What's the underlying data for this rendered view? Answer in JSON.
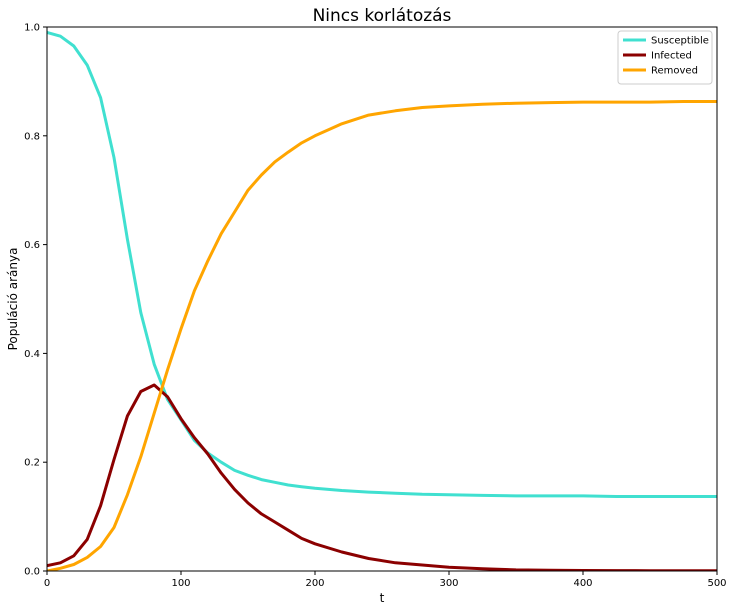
{
  "chart_data": {
    "type": "line",
    "title": "Nincs korlátozás",
    "xlabel": "t",
    "ylabel": "Populáció aránya",
    "xlim": [
      0,
      500
    ],
    "ylim": [
      0,
      1.0
    ],
    "xticks": [
      "0",
      "100",
      "200",
      "300",
      "400",
      "500"
    ],
    "yticks": [
      "0.0",
      "0.2",
      "0.4",
      "0.6",
      "0.8",
      "1.0"
    ],
    "grid": false,
    "legend_position": "top-right",
    "x": [
      0,
      10,
      20,
      30,
      40,
      50,
      60,
      70,
      80,
      90,
      100,
      110,
      120,
      130,
      140,
      150,
      160,
      170,
      180,
      190,
      200,
      220,
      240,
      260,
      280,
      300,
      325,
      350,
      375,
      400,
      425,
      450,
      475,
      500
    ],
    "series": [
      {
        "name": "Susceptible",
        "color": "#40e0d0",
        "values": [
          0.99,
          0.983,
          0.965,
          0.93,
          0.87,
          0.76,
          0.61,
          0.475,
          0.38,
          0.315,
          0.278,
          0.24,
          0.217,
          0.2,
          0.185,
          0.176,
          0.168,
          0.163,
          0.158,
          0.155,
          0.152,
          0.148,
          0.145,
          0.143,
          0.141,
          0.14,
          0.139,
          0.138,
          0.138,
          0.138,
          0.137,
          0.137,
          0.137,
          0.137
        ]
      },
      {
        "name": "Infected",
        "color": "#8b0000",
        "values": [
          0.01,
          0.015,
          0.028,
          0.058,
          0.12,
          0.205,
          0.285,
          0.33,
          0.342,
          0.32,
          0.28,
          0.245,
          0.215,
          0.18,
          0.15,
          0.125,
          0.105,
          0.09,
          0.075,
          0.06,
          0.05,
          0.035,
          0.023,
          0.015,
          0.011,
          0.007,
          0.004,
          0.002,
          0.0015,
          0.001,
          0.0008,
          0.0006,
          0.0005,
          0.0004
        ]
      },
      {
        "name": "Removed",
        "color": "#ffa500",
        "values": [
          0.0,
          0.005,
          0.012,
          0.025,
          0.045,
          0.08,
          0.14,
          0.21,
          0.29,
          0.37,
          0.445,
          0.515,
          0.57,
          0.62,
          0.66,
          0.7,
          0.728,
          0.752,
          0.77,
          0.787,
          0.8,
          0.822,
          0.838,
          0.846,
          0.852,
          0.855,
          0.858,
          0.86,
          0.861,
          0.862,
          0.862,
          0.862,
          0.863,
          0.863
        ]
      }
    ]
  }
}
